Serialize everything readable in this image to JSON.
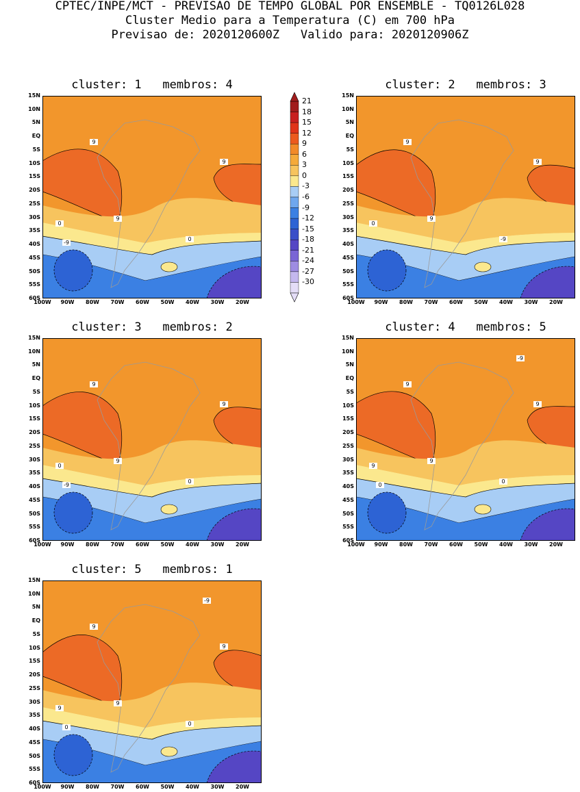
{
  "header": {
    "line1": "CPTEC/INPE/MCT - PREVISAO DE TEMPO GLOBAL POR ENSEMBLE - TQ0126L028",
    "line2": "Cluster Medio para a Temperatura (C) em 700 hPa",
    "line3": "Previsao de: 2020120600Z   Valido para: 2020120906Z"
  },
  "axes": {
    "lat_ticks": [
      "15N",
      "10N",
      "5N",
      "EQ",
      "5S",
      "10S",
      "15S",
      "20S",
      "25S",
      "30S",
      "35S",
      "40S",
      "45S",
      "50S",
      "55S",
      "60S"
    ],
    "lon_ticks": [
      "100W",
      "90W",
      "80W",
      "70W",
      "60W",
      "50W",
      "40W",
      "30W",
      "20W"
    ]
  },
  "colorbar": {
    "labels": [
      "21",
      "18",
      "15",
      "12",
      "9",
      "6",
      "3",
      "0",
      "-3",
      "-6",
      "-9",
      "-12",
      "-15",
      "-18",
      "-21",
      "-24",
      "-27",
      "-30"
    ],
    "colors": [
      "#a11d1d",
      "#c82020",
      "#e0341a",
      "#ec5a1e",
      "#f28a28",
      "#f5aa3a",
      "#f7c45e",
      "#fbe88e",
      "#a8cdf5",
      "#6fa7ee",
      "#3b80e3",
      "#2d63d4",
      "#3a4fc8",
      "#5546c4",
      "#7a65d5",
      "#9e8ce2",
      "#c4b8ee",
      "#e4ddf7"
    ]
  },
  "panels": [
    {
      "title": "cluster: 1   membros: 4",
      "contour_labels": [
        "9",
        "9",
        "9",
        "0",
        "0",
        "-9"
      ]
    },
    {
      "title": "cluster: 2   membros: 3",
      "contour_labels": [
        "9",
        "9",
        "9",
        "0",
        "-9"
      ]
    },
    {
      "title": "cluster: 3   membros: 2",
      "contour_labels": [
        "9",
        "9",
        "9",
        "0",
        "0",
        "-9"
      ]
    },
    {
      "title": "cluster: 4   membros: 5",
      "contour_labels": [
        "9",
        "9",
        "9",
        "9",
        "0",
        "0",
        "-9"
      ]
    },
    {
      "title": "cluster: 5   membros: 1",
      "contour_labels": [
        "9",
        "9",
        "9",
        "9",
        "0",
        "0",
        "-9"
      ]
    }
  ]
}
